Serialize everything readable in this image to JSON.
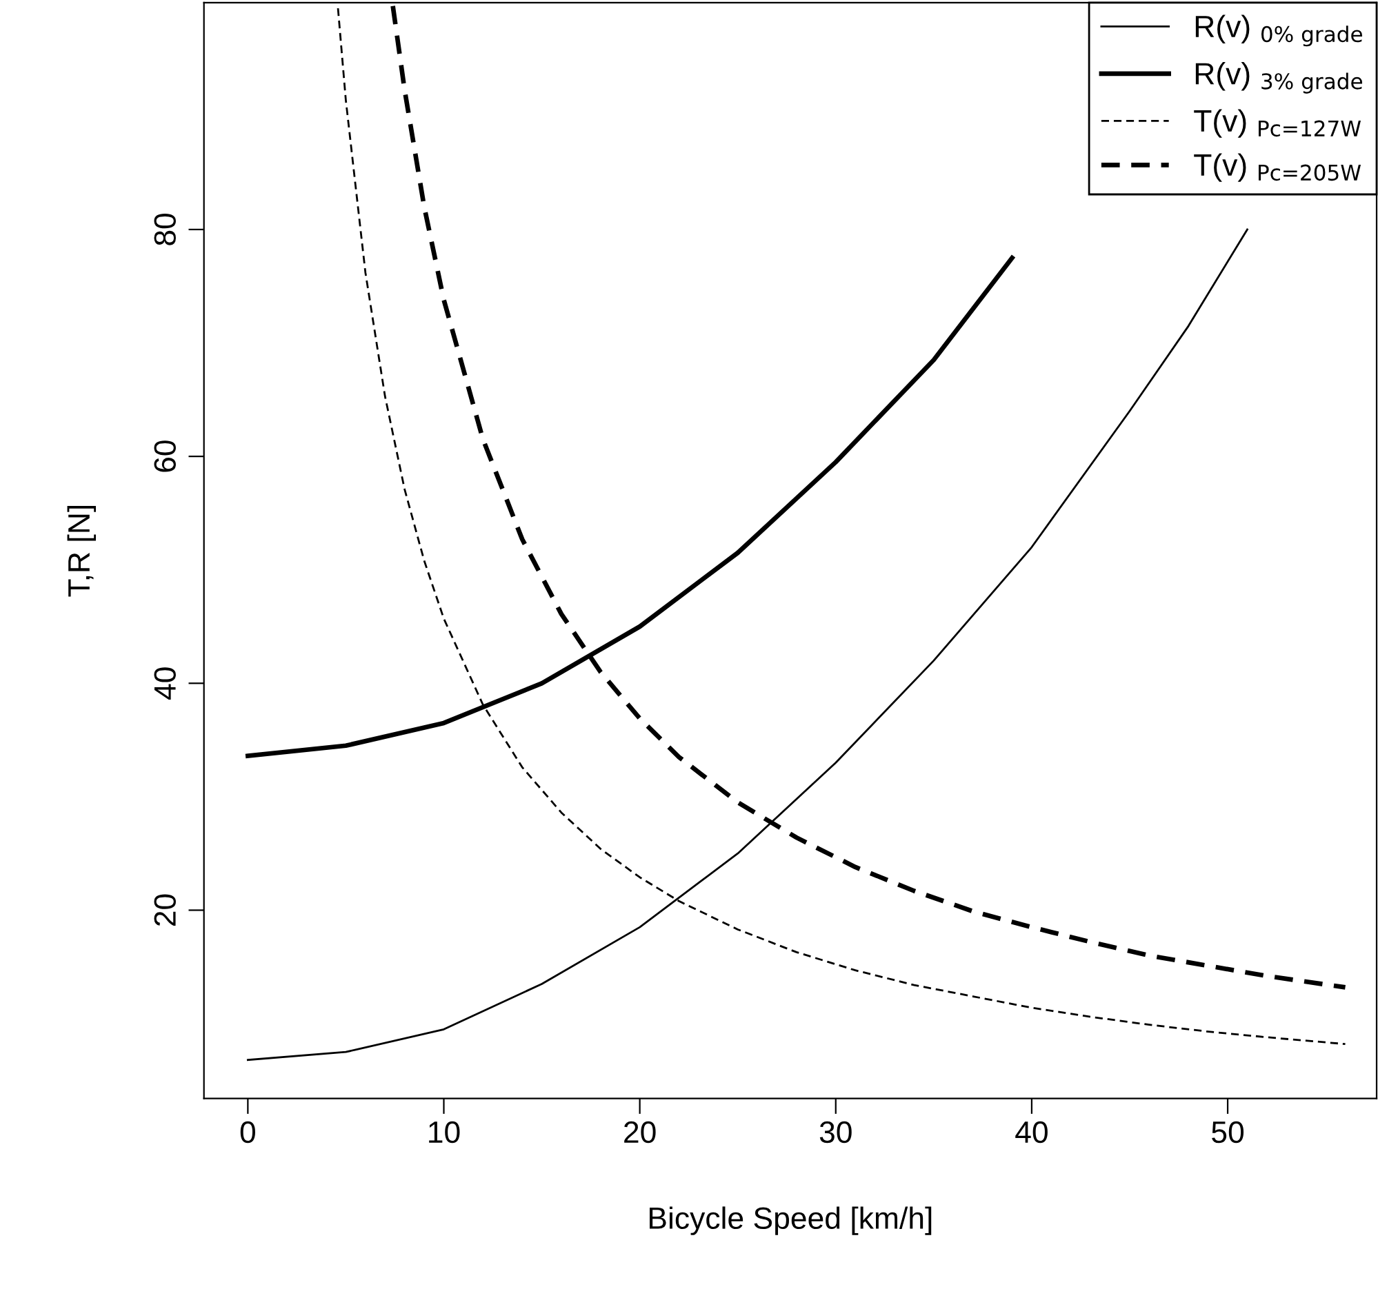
{
  "chart_data": {
    "type": "line",
    "xlabel": "Bicycle Speed [km/h]",
    "ylabel": "T,R [N]",
    "xlim": [
      -2.24,
      57.6
    ],
    "ylim": [
      3.4,
      100
    ],
    "xticks": [
      0,
      10,
      20,
      30,
      40,
      50
    ],
    "yticks": [
      20,
      40,
      60,
      80
    ],
    "grid": false,
    "legend": "top right",
    "marker": "none",
    "series": [
      {
        "name": "R(v) $_{0% grade}$",
        "color": "#000000",
        "line_style": "solid",
        "x": [
          0,
          5,
          10,
          15,
          20,
          25,
          30,
          35,
          40,
          45,
          48,
          51
        ],
        "values": [
          6.8,
          7.5,
          9.5,
          13.5,
          18.5,
          25,
          33,
          42,
          52,
          64,
          71.5,
          80
        ]
      },
      {
        "name": "R(v) $_{3% grade}$",
        "color": "#000000",
        "line_style": "solid",
        "x": [
          0,
          5,
          10,
          15,
          20,
          25,
          30,
          35,
          39
        ],
        "values": [
          33.6,
          34.5,
          36.5,
          40,
          45,
          51.5,
          59.5,
          68.5,
          77.5
        ]
      },
      {
        "name": "T(v) $_{Pc=127W}$",
        "color": "#000000",
        "line_style": "dashed",
        "x": [
          4.6,
          5,
          6,
          7,
          8,
          9,
          10,
          12,
          14,
          16,
          18,
          20,
          22,
          25,
          28,
          31,
          34,
          37,
          40,
          43,
          46,
          49,
          52,
          56
        ],
        "values": [
          99.5,
          91.4,
          76.2,
          65.3,
          57.1,
          50.8,
          45.7,
          38.1,
          32.6,
          28.6,
          25.4,
          22.9,
          20.8,
          18.3,
          16.3,
          14.7,
          13.4,
          12.4,
          11.4,
          10.6,
          9.9,
          9.3,
          8.8,
          8.2
        ]
      },
      {
        "name": "T(v) $_{Pc=205W}$",
        "color": "#000000",
        "line_style": "dashed",
        "x": [
          7.4,
          8,
          9,
          10,
          12,
          14,
          16,
          18,
          20,
          22,
          25,
          28,
          31,
          34,
          37,
          40,
          43,
          46,
          49,
          52,
          56
        ],
        "values": [
          99.7,
          92.3,
          82,
          73.8,
          61.5,
          52.7,
          46.1,
          41,
          36.9,
          33.5,
          29.5,
          26.4,
          23.8,
          21.7,
          19.9,
          18.5,
          17.2,
          16,
          15.1,
          14.2,
          13.2
        ]
      }
    ]
  }
}
